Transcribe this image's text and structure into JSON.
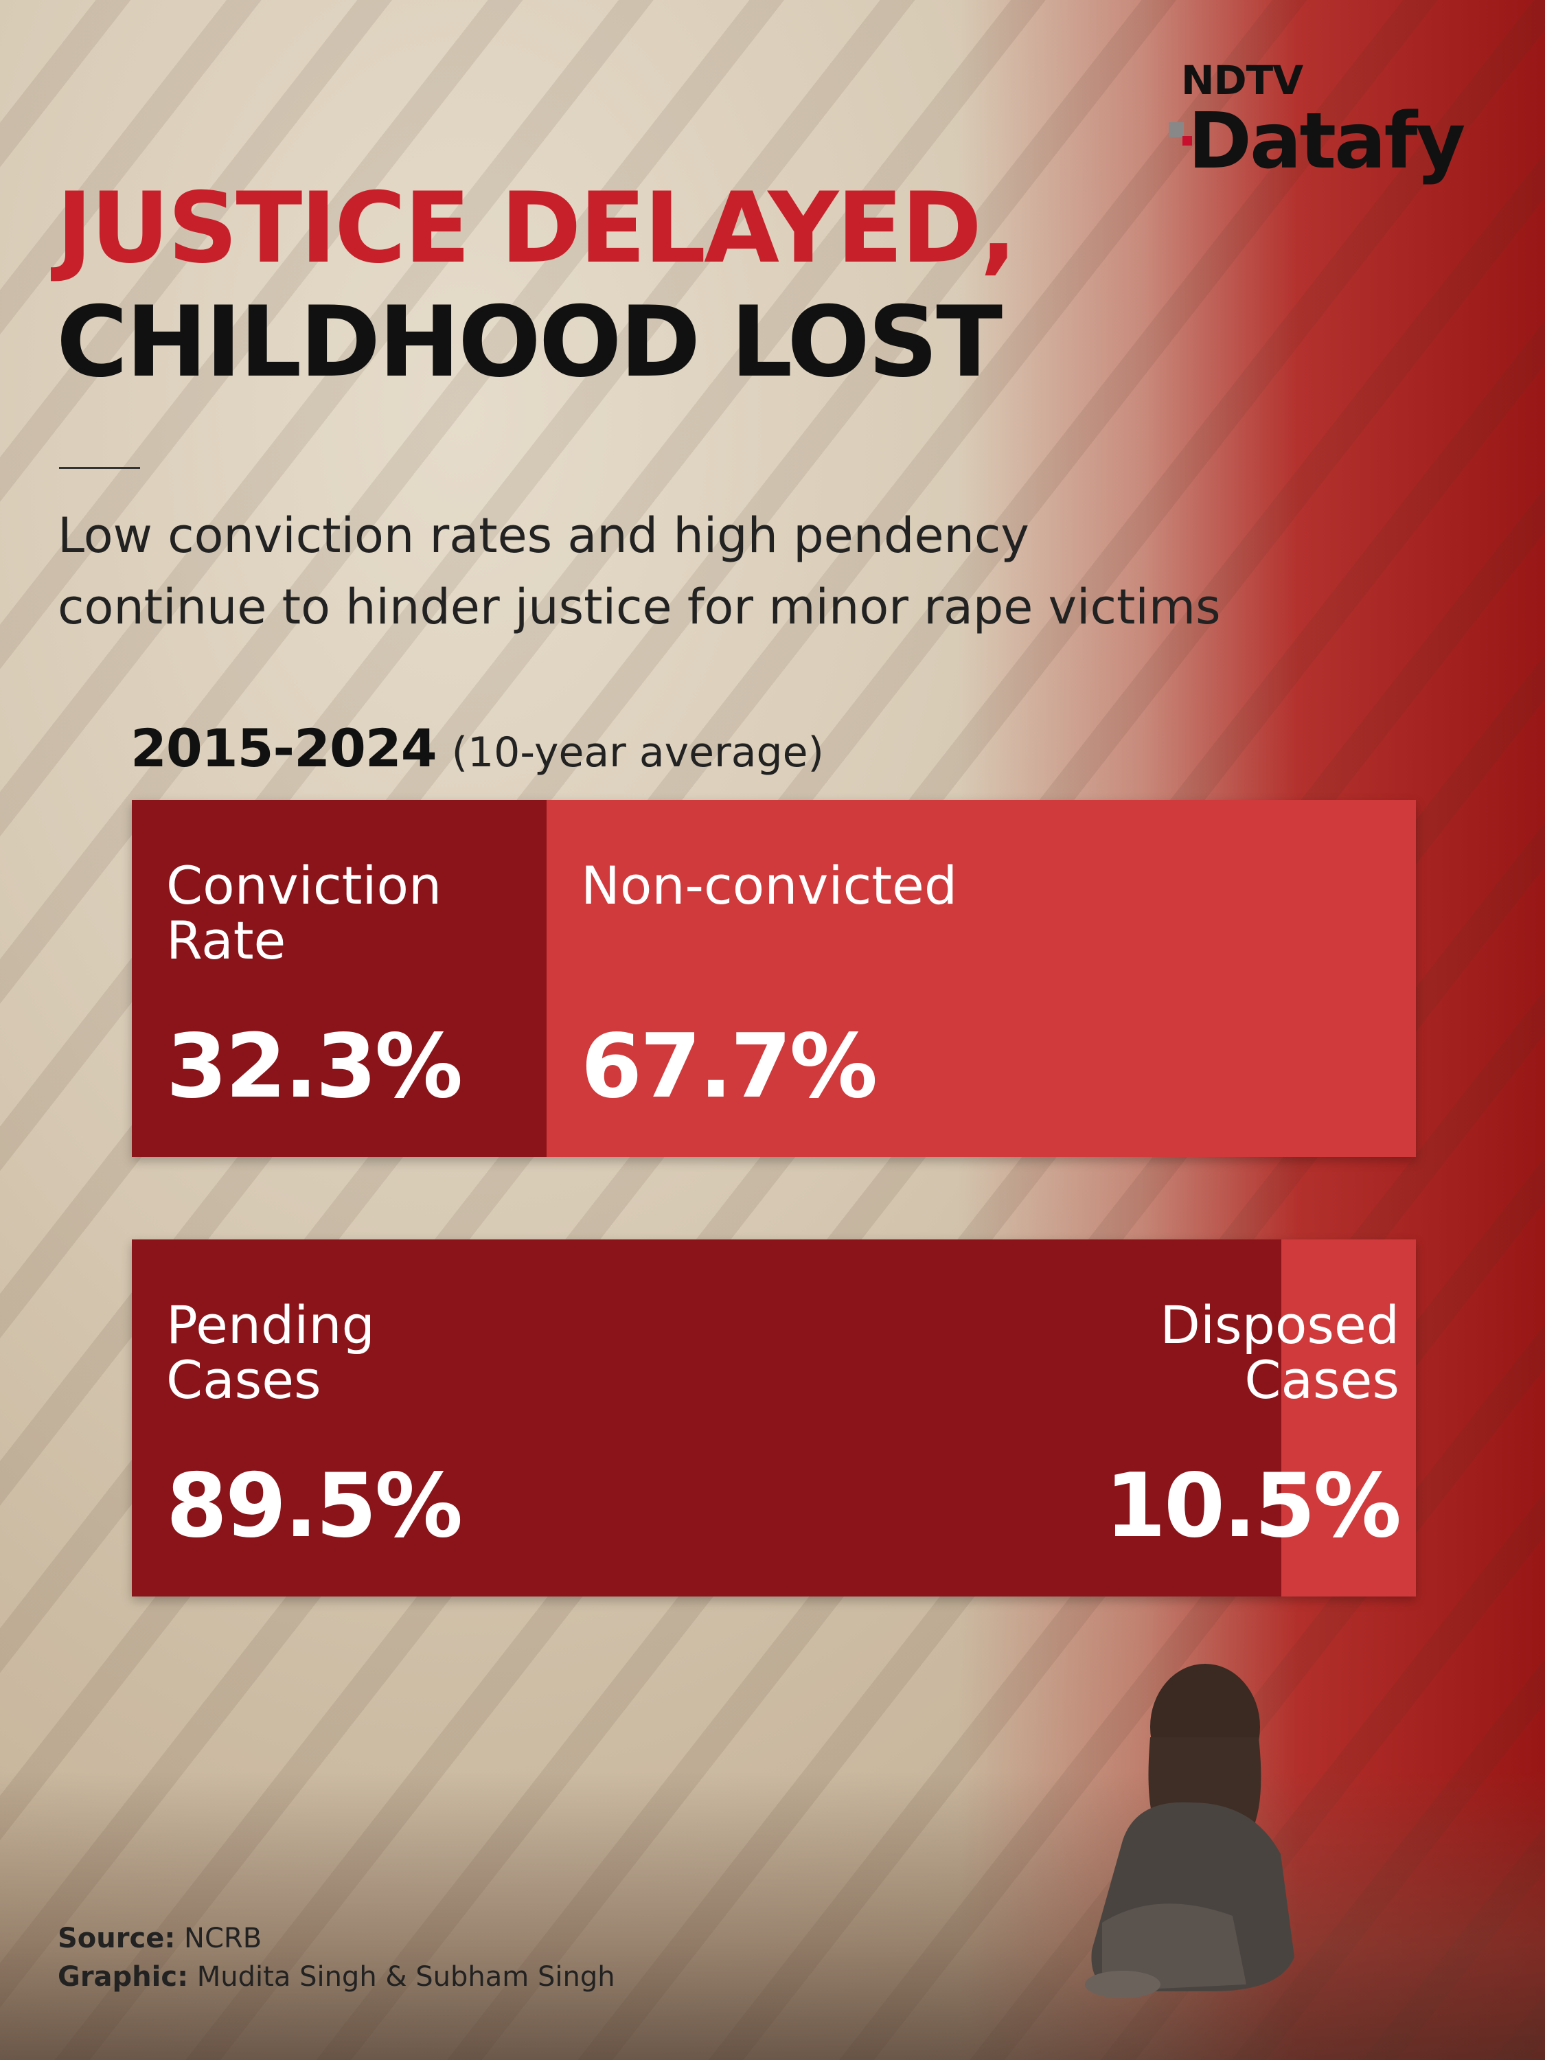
{
  "logo": {
    "top": "NDTV",
    "bottom": "Datafy"
  },
  "title": {
    "line1": "JUSTICE DELAYED,",
    "line2": "CHILDHOOD LOST"
  },
  "subtitle": {
    "line1": "Low conviction rates and high pendency",
    "line2": "continue to hinder justice for minor rape victims"
  },
  "period": {
    "years": "2015-2024",
    "note": "(10-year average)"
  },
  "colors": {
    "dark_segment": "#8b141b",
    "light_segment": "#d03a3c",
    "title_red": "#c8202a"
  },
  "chart_data": [
    {
      "type": "bar",
      "title": "",
      "categories": [
        "Conviction Rate",
        "Non-convicted"
      ],
      "values": [
        32.3,
        67.7
      ],
      "value_labels": [
        "32.3%",
        "67.7%"
      ],
      "unit": "%",
      "stacked": true,
      "label_lines": [
        [
          "Conviction",
          "Rate"
        ],
        [
          "Non-convicted"
        ]
      ]
    },
    {
      "type": "bar",
      "title": "",
      "categories": [
        "Pending Cases",
        "Disposed Cases"
      ],
      "values": [
        89.5,
        10.5
      ],
      "value_labels": [
        "89.5%",
        "10.5%"
      ],
      "unit": "%",
      "stacked": true,
      "label_lines": [
        [
          "Pending",
          "Cases"
        ],
        [
          "Disposed",
          "Cases"
        ]
      ]
    }
  ],
  "footer": {
    "source_label": "Source:",
    "source_value": "NCRB",
    "graphic_label": "Graphic:",
    "graphic_value": "Mudita Singh & Subham Singh"
  }
}
